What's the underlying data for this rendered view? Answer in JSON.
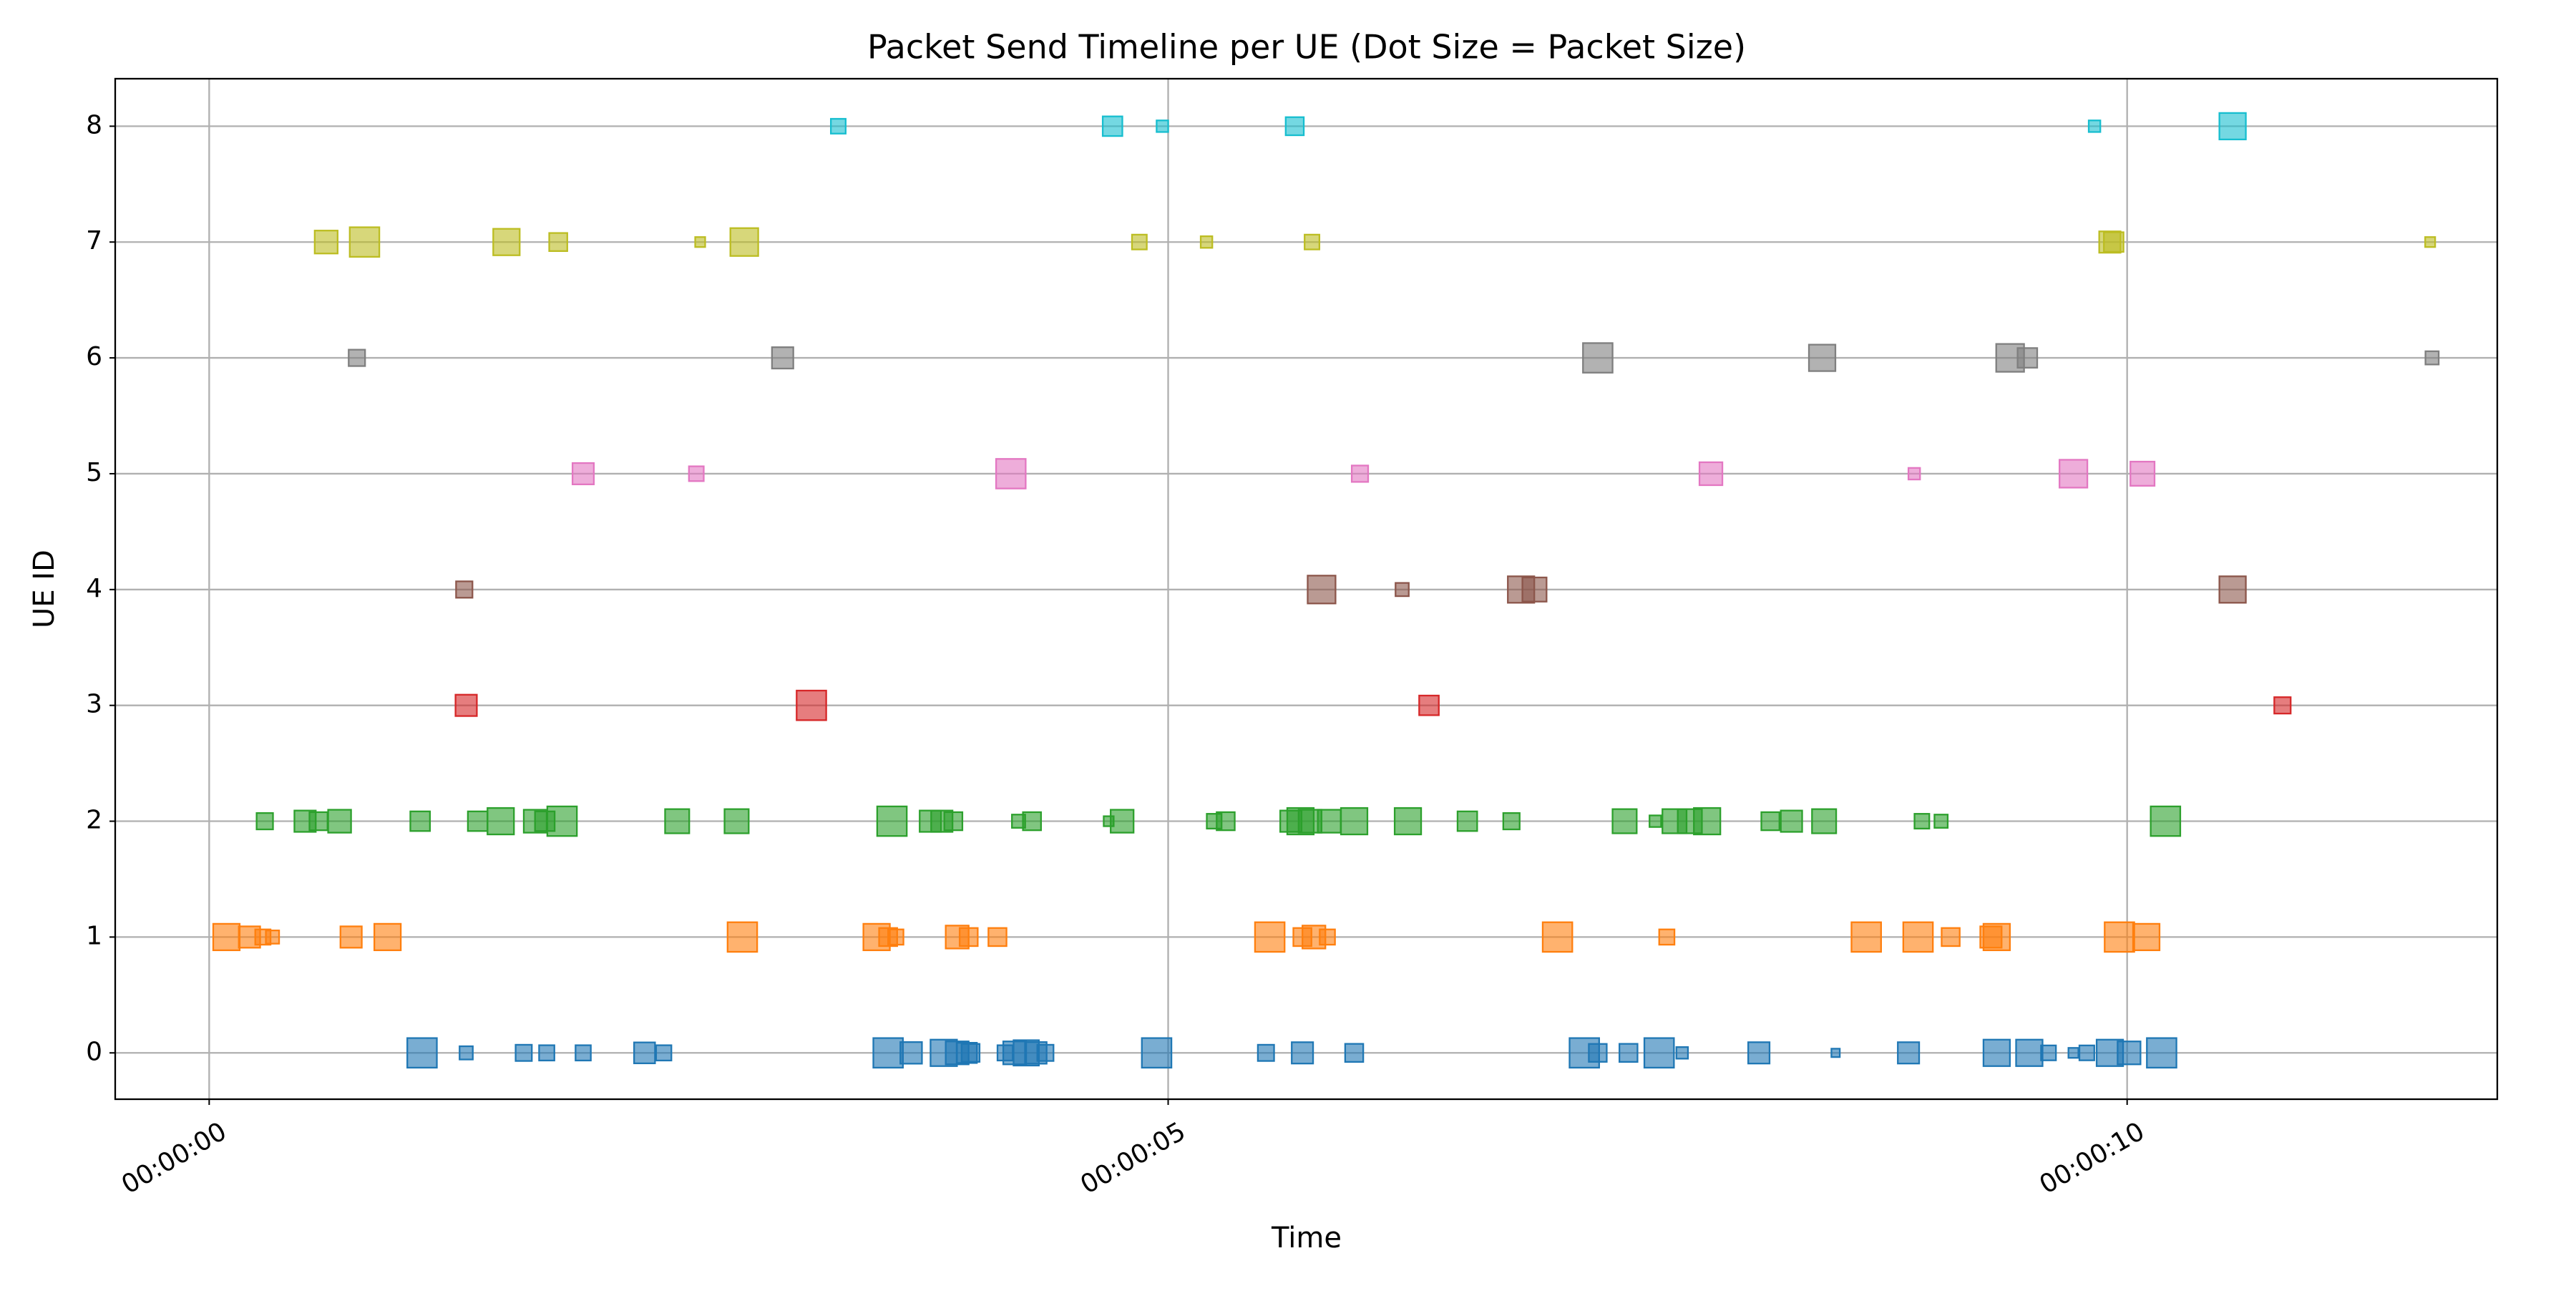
{
  "chart_data": {
    "type": "scatter",
    "marker": "square",
    "title": "Packet Send Timeline per UE (Dot Size = Packet Size)",
    "x_label": "Time",
    "y_label": "UE ID",
    "xlim": [
      -0.49,
      11.93
    ],
    "ylim": [
      -0.4,
      8.41
    ],
    "xticks": [
      {
        "value": 0,
        "label": "00:00:00"
      },
      {
        "value": 5,
        "label": "00:00:05"
      },
      {
        "value": 10,
        "label": "00:00:10"
      }
    ],
    "yticks": [
      0,
      1,
      2,
      3,
      4,
      5,
      6,
      7,
      8
    ],
    "grid": true,
    "series": [
      {
        "color": "#1f77b4",
        "x": [
          1.11,
          1.34,
          1.64,
          1.76,
          1.95,
          2.27,
          2.37,
          3.54,
          3.66,
          3.83,
          3.9,
          3.95,
          3.97,
          4.15,
          4.2,
          4.26,
          4.31,
          4.36,
          4.94,
          5.51,
          5.7,
          5.97,
          7.17,
          7.24,
          7.4,
          7.56,
          7.68,
          8.08,
          8.48,
          8.86,
          9.32,
          9.49,
          9.59,
          9.72,
          9.79,
          9.91,
          10.01,
          10.18
        ],
        "values": [
          0,
          0,
          0,
          0,
          0,
          0,
          0,
          0,
          0,
          0,
          0,
          0,
          0,
          0,
          0,
          0,
          0,
          0,
          0,
          0,
          0,
          0,
          0,
          0,
          0,
          0,
          0,
          0,
          0,
          0,
          0,
          0,
          0,
          0,
          0,
          0,
          0,
          0
        ],
        "sizes": [
          1500,
          300,
          450,
          400,
          400,
          750,
          400,
          1500,
          800,
          1200,
          900,
          700,
          550,
          400,
          900,
          1100,
          800,
          450,
          1500,
          450,
          780,
          560,
          1500,
          550,
          560,
          1500,
          230,
          780,
          120,
          780,
          1200,
          1200,
          380,
          170,
          380,
          1200,
          900,
          1500
        ]
      },
      {
        "color": "#ff7f0e",
        "x": [
          0.09,
          0.21,
          0.28,
          0.33,
          0.74,
          0.93,
          2.78,
          3.48,
          3.54,
          3.58,
          3.9,
          3.96,
          4.11,
          5.53,
          5.7,
          5.76,
          5.83,
          7.03,
          7.6,
          8.64,
          8.91,
          9.08,
          9.29,
          9.32,
          9.96,
          10.1
        ],
        "values": [
          1,
          1,
          1,
          1,
          1,
          1,
          1,
          1,
          1,
          1,
          1,
          1,
          1,
          1,
          1,
          1,
          1,
          1,
          1,
          1,
          1,
          1,
          1,
          1,
          1,
          1
        ],
        "sizes": [
          1200,
          780,
          400,
          300,
          780,
          1200,
          1500,
          1200,
          560,
          400,
          900,
          560,
          560,
          1500,
          560,
          900,
          400,
          1500,
          400,
          1500,
          1500,
          560,
          780,
          1200,
          1500,
          1200
        ]
      },
      {
        "color": "#2ca02c",
        "x": [
          0.29,
          0.5,
          0.57,
          0.68,
          1.1,
          1.4,
          1.52,
          1.7,
          1.75,
          1.84,
          2.44,
          2.75,
          3.56,
          3.76,
          3.82,
          3.88,
          4.22,
          4.29,
          4.69,
          4.76,
          5.24,
          5.3,
          5.64,
          5.69,
          5.74,
          5.84,
          5.97,
          6.25,
          6.56,
          6.79,
          7.38,
          7.54,
          7.64,
          7.72,
          7.81,
          8.14,
          8.25,
          8.42,
          8.93,
          9.03,
          10.2
        ],
        "values": [
          2,
          2,
          2,
          2,
          2,
          2,
          2,
          2,
          2,
          2,
          2,
          2,
          2,
          2,
          2,
          2,
          2,
          2,
          2,
          2,
          2,
          2,
          2,
          2,
          2,
          2,
          2,
          2,
          2,
          2,
          2,
          2,
          2,
          2,
          2,
          2,
          2,
          2,
          2,
          2,
          2
        ],
        "sizes": [
          460,
          780,
          560,
          900,
          660,
          660,
          1200,
          900,
          660,
          1500,
          1000,
          1000,
          1500,
          780,
          780,
          560,
          300,
          560,
          170,
          900,
          375,
          560,
          780,
          1200,
          900,
          900,
          1200,
          1200,
          660,
          460,
          1000,
          230,
          1000,
          1000,
          1200,
          560,
          780,
          1000,
          375,
          300,
          1500
        ]
      },
      {
        "color": "#d62728",
        "x": [
          1.34,
          3.14,
          6.36,
          10.81
        ],
        "values": [
          3,
          3,
          3,
          3
        ],
        "sizes": [
          780,
          1500,
          660,
          460
        ]
      },
      {
        "color": "#8c564b",
        "x": [
          1.33,
          5.8,
          6.22,
          6.84,
          6.91,
          10.55
        ],
        "values": [
          4,
          4,
          4,
          4,
          4,
          4
        ],
        "sizes": [
          460,
          1330,
          300,
          1200,
          1000,
          1200
        ]
      },
      {
        "color": "#e377c2",
        "x": [
          1.95,
          2.54,
          4.18,
          6.0,
          7.83,
          8.89,
          9.72,
          10.08
        ],
        "values": [
          5,
          5,
          5,
          5,
          5,
          5,
          5,
          5
        ],
        "sizes": [
          780,
          375,
          1500,
          460,
          900,
          230,
          1330,
          1000
        ]
      },
      {
        "color": "#7f7f7f",
        "x": [
          0.77,
          2.99,
          7.24,
          8.41,
          9.39,
          9.48,
          11.59
        ],
        "values": [
          6,
          6,
          6,
          6,
          6,
          6,
          6
        ],
        "sizes": [
          460,
          780,
          1500,
          1200,
          1330,
          660,
          300
        ]
      },
      {
        "color": "#bcbd22",
        "x": [
          0.61,
          0.81,
          1.55,
          1.82,
          2.56,
          2.79,
          4.85,
          5.2,
          5.75,
          9.91,
          9.93,
          11.58
        ],
        "values": [
          7,
          7,
          7,
          7,
          7,
          7,
          7,
          7,
          7,
          7,
          7,
          7
        ],
        "sizes": [
          900,
          1500,
          1200,
          560,
          170,
          1330,
          375,
          230,
          375,
          780,
          660,
          170
        ]
      },
      {
        "color": "#17becf",
        "x": [
          3.28,
          4.71,
          4.97,
          5.66,
          9.83,
          10.55
        ],
        "values": [
          8,
          8,
          8,
          8,
          8,
          8
        ],
        "sizes": [
          375,
          660,
          230,
          560,
          230,
          1200
        ]
      }
    ]
  }
}
